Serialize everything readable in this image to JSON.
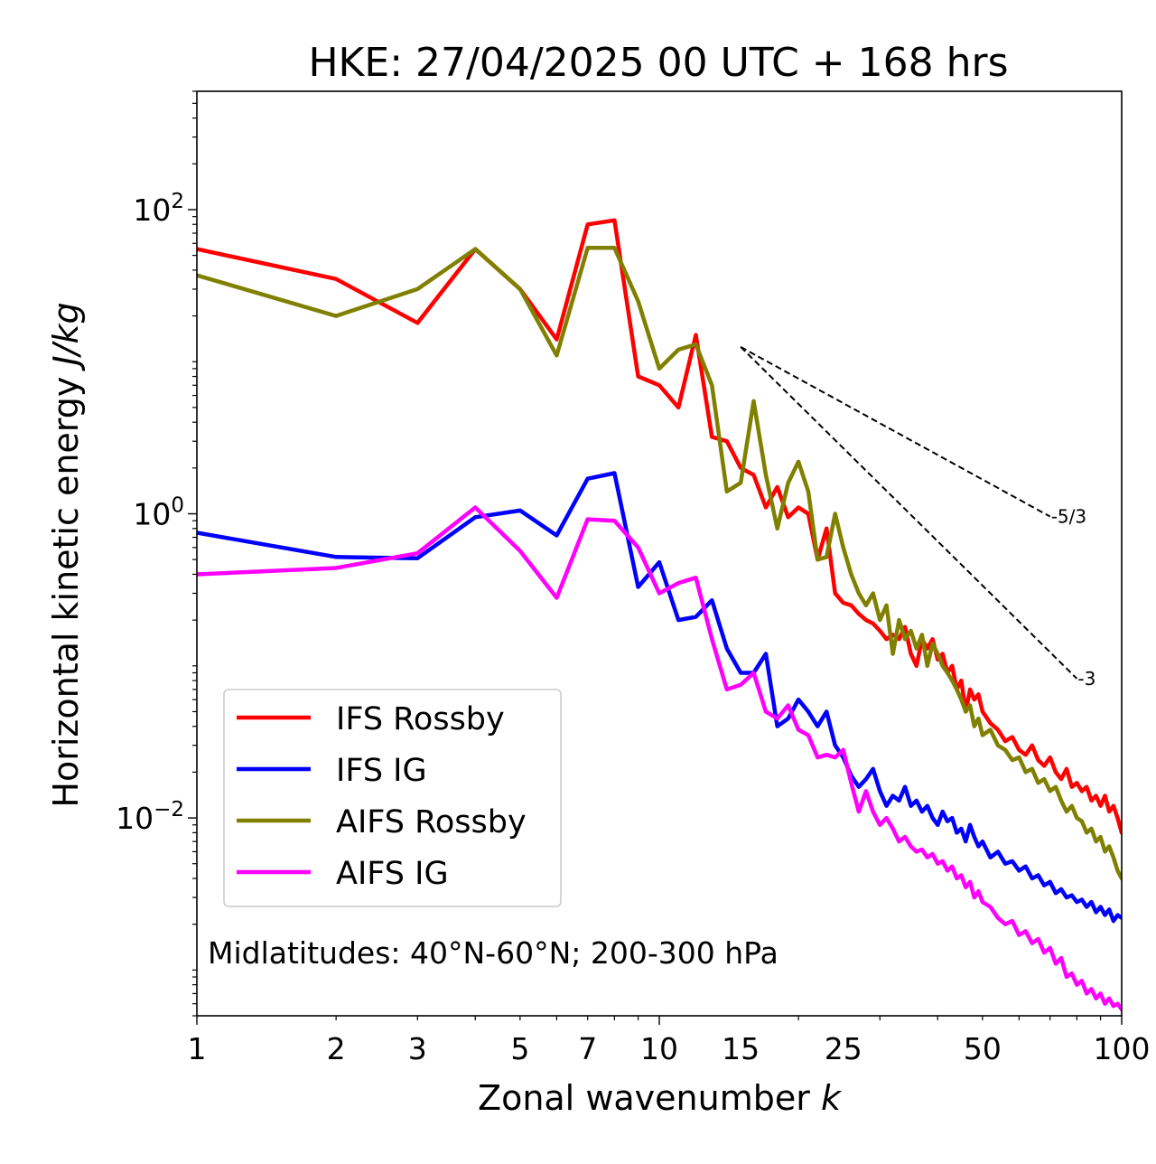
{
  "chart_data": {
    "type": "line",
    "title": "HKE: 27/04/2025 00 UTC + 168 hrs",
    "xlabel": "Zonal wavenumber",
    "xlabel_italic": "k",
    "ylabel": "Horizontal kinetic energy",
    "ylabel_italic": "J/kg",
    "xscale": "log",
    "yscale": "log",
    "xlim": [
      1,
      100
    ],
    "ylim": [
      0.0005,
      600
    ],
    "x_ticks": [
      1,
      2,
      3,
      5,
      7,
      10,
      15,
      25,
      50,
      100
    ],
    "x_tick_labels": [
      "1",
      "2",
      "3",
      "5",
      "7",
      "10",
      "15",
      "25",
      "50",
      "100"
    ],
    "y_ticks": [
      0.01,
      1,
      100
    ],
    "y_tick_labels": [
      [
        "10",
        "−2"
      ],
      [
        "10",
        "0"
      ],
      [
        "10",
        "2"
      ]
    ],
    "legend_position": "lower-left",
    "annotation": "Midlatitudes: 40°N-60°N; 200-300 hPa",
    "reference_lines": [
      {
        "label": "-5/3",
        "slope": -1.6667,
        "x0": 15,
        "y0": 12.5,
        "x1": 70
      },
      {
        "label": "-3",
        "slope": -3,
        "x0": 15,
        "y0": 12.5,
        "x1": 80
      }
    ],
    "series": [
      {
        "name": "IFS Rossby",
        "color": "#ff0000",
        "x": [
          1,
          2,
          3,
          4,
          5,
          6,
          7,
          8,
          9,
          10,
          11,
          12,
          13,
          14,
          15,
          16,
          17,
          18,
          19,
          20,
          21,
          22,
          23,
          24,
          25,
          26,
          27,
          28,
          29,
          30,
          31,
          32,
          33,
          34,
          35,
          36,
          37,
          38,
          39,
          40,
          41,
          42,
          43,
          44,
          45,
          46,
          47,
          48,
          49,
          50,
          52,
          54,
          56,
          58,
          60,
          62,
          64,
          66,
          68,
          70,
          72,
          74,
          76,
          78,
          80,
          82,
          84,
          86,
          88,
          90,
          92,
          94,
          96,
          98,
          100
        ],
        "y": [
          55,
          35,
          18,
          55,
          30,
          14,
          80,
          85,
          8,
          7,
          5,
          15,
          3.2,
          3,
          2,
          1.8,
          1.1,
          1.5,
          0.95,
          1.1,
          1,
          0.5,
          0.8,
          0.3,
          0.26,
          0.25,
          0.22,
          0.2,
          0.19,
          0.17,
          0.15,
          0.16,
          0.15,
          0.18,
          0.12,
          0.1,
          0.15,
          0.13,
          0.15,
          0.11,
          0.12,
          0.09,
          0.1,
          0.07,
          0.08,
          0.05,
          0.07,
          0.06,
          0.065,
          0.05,
          0.042,
          0.038,
          0.032,
          0.034,
          0.028,
          0.026,
          0.03,
          0.024,
          0.022,
          0.025,
          0.02,
          0.018,
          0.021,
          0.016,
          0.017,
          0.015,
          0.016,
          0.013,
          0.014,
          0.012,
          0.014,
          0.011,
          0.012,
          0.01,
          0.008
        ]
      },
      {
        "name": "IFS IG",
        "color": "#0000ff",
        "x": [
          1,
          2,
          3,
          4,
          5,
          6,
          7,
          8,
          9,
          10,
          11,
          12,
          13,
          14,
          15,
          16,
          17,
          18,
          19,
          20,
          21,
          22,
          23,
          24,
          25,
          26,
          27,
          28,
          29,
          30,
          31,
          32,
          33,
          34,
          35,
          36,
          37,
          38,
          39,
          40,
          41,
          42,
          43,
          44,
          45,
          46,
          47,
          48,
          49,
          50,
          52,
          54,
          56,
          58,
          60,
          62,
          64,
          66,
          68,
          70,
          72,
          74,
          76,
          78,
          80,
          82,
          84,
          86,
          88,
          90,
          92,
          94,
          96,
          98,
          100
        ],
        "y": [
          0.75,
          0.52,
          0.51,
          0.95,
          1.05,
          0.72,
          1.7,
          1.85,
          0.33,
          0.48,
          0.2,
          0.21,
          0.27,
          0.13,
          0.09,
          0.09,
          0.12,
          0.04,
          0.045,
          0.06,
          0.05,
          0.04,
          0.05,
          0.03,
          0.025,
          0.019,
          0.016,
          0.018,
          0.021,
          0.015,
          0.012,
          0.014,
          0.013,
          0.016,
          0.012,
          0.013,
          0.011,
          0.012,
          0.01,
          0.009,
          0.011,
          0.0095,
          0.01,
          0.008,
          0.0085,
          0.007,
          0.009,
          0.0075,
          0.0065,
          0.007,
          0.0055,
          0.006,
          0.005,
          0.0052,
          0.0045,
          0.0048,
          0.004,
          0.0042,
          0.0036,
          0.0038,
          0.0032,
          0.0034,
          0.003,
          0.0031,
          0.0028,
          0.0029,
          0.0026,
          0.0028,
          0.0024,
          0.0026,
          0.0023,
          0.0025,
          0.0021,
          0.0023,
          0.0022
        ]
      },
      {
        "name": "AIFS Rossby",
        "color": "#808000",
        "x": [
          1,
          2,
          3,
          4,
          5,
          6,
          7,
          8,
          9,
          10,
          11,
          12,
          13,
          14,
          15,
          16,
          17,
          18,
          19,
          20,
          21,
          22,
          23,
          24,
          25,
          26,
          27,
          28,
          29,
          30,
          31,
          32,
          33,
          34,
          35,
          36,
          37,
          38,
          39,
          40,
          41,
          42,
          43,
          44,
          45,
          46,
          47,
          48,
          49,
          50,
          52,
          54,
          56,
          58,
          60,
          62,
          64,
          66,
          68,
          70,
          72,
          74,
          76,
          78,
          80,
          82,
          84,
          86,
          88,
          90,
          92,
          94,
          96,
          98,
          100
        ],
        "y": [
          37,
          20,
          30,
          55,
          30,
          11,
          56,
          56,
          25,
          9,
          12,
          13,
          7,
          1.4,
          1.6,
          5.5,
          1.8,
          0.8,
          1.6,
          2.2,
          1.4,
          0.5,
          0.52,
          1,
          0.6,
          0.4,
          0.3,
          0.25,
          0.3,
          0.2,
          0.25,
          0.12,
          0.2,
          0.15,
          0.17,
          0.13,
          0.16,
          0.1,
          0.14,
          0.12,
          0.1,
          0.09,
          0.08,
          0.07,
          0.06,
          0.05,
          0.055,
          0.04,
          0.045,
          0.035,
          0.038,
          0.03,
          0.028,
          0.024,
          0.025,
          0.02,
          0.021,
          0.017,
          0.018,
          0.015,
          0.016,
          0.013,
          0.011,
          0.012,
          0.01,
          0.0095,
          0.008,
          0.0085,
          0.007,
          0.0075,
          0.006,
          0.0065,
          0.0055,
          0.0045,
          0.004
        ]
      },
      {
        "name": "AIFS IG",
        "color": "#ff00ff",
        "x": [
          1,
          2,
          3,
          4,
          5,
          6,
          7,
          8,
          9,
          10,
          11,
          12,
          13,
          14,
          15,
          16,
          17,
          18,
          19,
          20,
          21,
          22,
          23,
          24,
          25,
          26,
          27,
          28,
          29,
          30,
          31,
          32,
          33,
          34,
          35,
          36,
          37,
          38,
          39,
          40,
          41,
          42,
          43,
          44,
          45,
          46,
          47,
          48,
          49,
          50,
          52,
          54,
          56,
          58,
          60,
          62,
          64,
          66,
          68,
          70,
          72,
          74,
          76,
          78,
          80,
          82,
          84,
          86,
          88,
          90,
          92,
          94,
          96,
          98,
          100
        ],
        "y": [
          0.4,
          0.44,
          0.55,
          1.1,
          0.57,
          0.28,
          0.92,
          0.9,
          0.6,
          0.3,
          0.35,
          0.38,
          0.15,
          0.07,
          0.075,
          0.09,
          0.05,
          0.045,
          0.055,
          0.038,
          0.035,
          0.025,
          0.026,
          0.025,
          0.028,
          0.017,
          0.011,
          0.015,
          0.011,
          0.009,
          0.01,
          0.0085,
          0.007,
          0.0075,
          0.0065,
          0.006,
          0.0062,
          0.0055,
          0.0058,
          0.005,
          0.0052,
          0.0045,
          0.0048,
          0.004,
          0.0042,
          0.0035,
          0.0038,
          0.003,
          0.0033,
          0.0028,
          0.0026,
          0.0022,
          0.002,
          0.0021,
          0.0017,
          0.0018,
          0.0015,
          0.0016,
          0.0013,
          0.0014,
          0.0011,
          0.0012,
          0.0009,
          0.00095,
          0.0008,
          0.00085,
          0.0007,
          0.00075,
          0.00065,
          0.0007,
          0.0006,
          0.00065,
          0.00058,
          0.0006,
          0.00055
        ]
      }
    ]
  }
}
